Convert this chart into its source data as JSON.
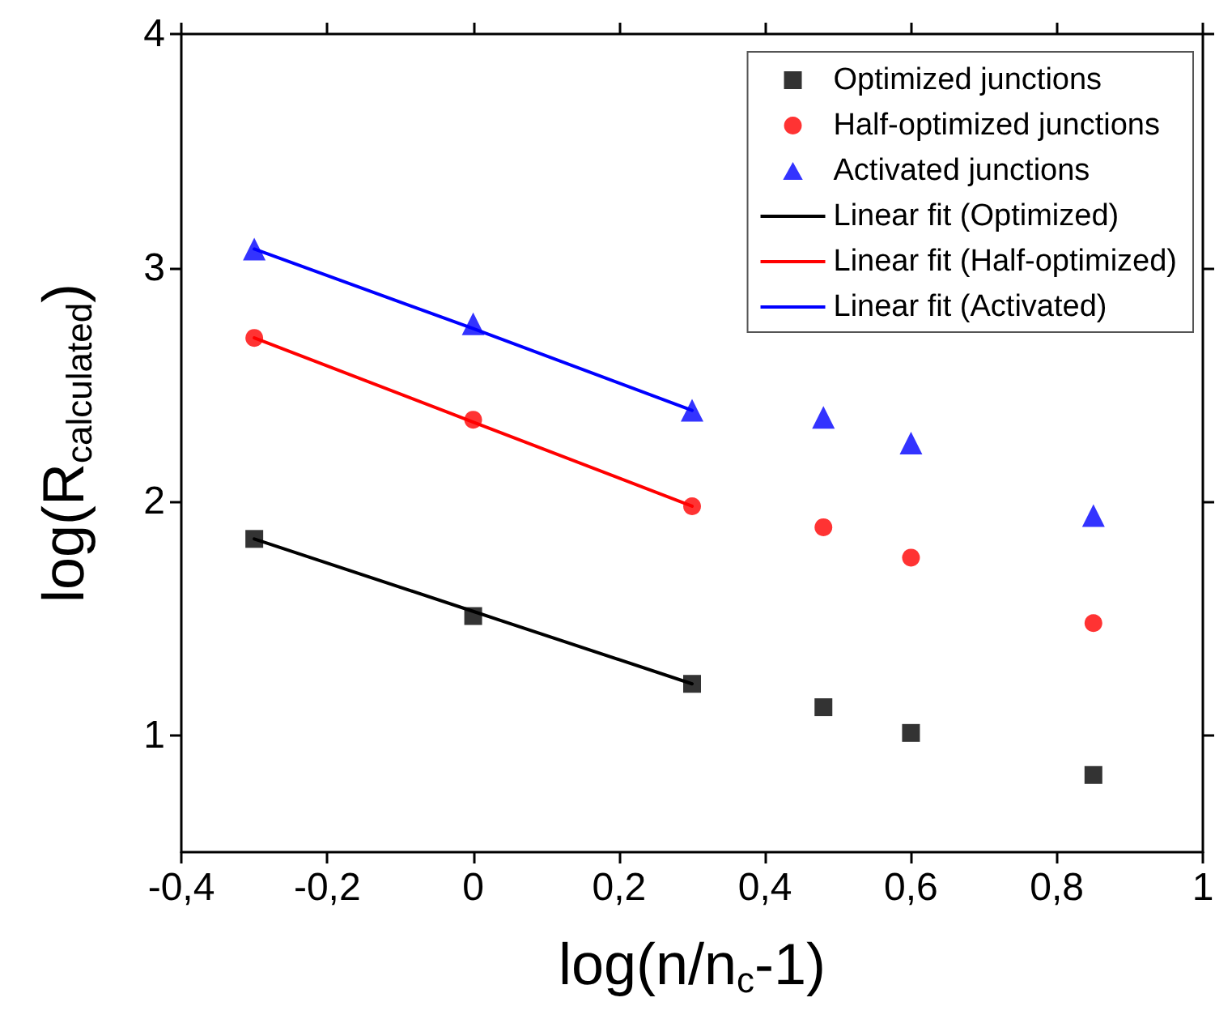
{
  "chart_data": {
    "type": "scatter",
    "xlabel": "log(n/n$_{c}$-1)",
    "ylabel": "log(R$_{calculated}$)",
    "xlim": [
      -0.4,
      1
    ],
    "xticks": [
      {
        "value": -0.4,
        "label": "-0,4"
      },
      {
        "value": -0.2,
        "label": "-0,2"
      },
      0,
      {
        "value": 0.2,
        "label": "0,2"
      },
      {
        "value": 0.4,
        "label": "0,4"
      },
      {
        "value": 0.6,
        "label": "0,6"
      },
      {
        "value": 0.8,
        "label": "0,8"
      },
      1
    ],
    "ylim": [
      0.5,
      4
    ],
    "yticks": [
      1,
      2,
      3,
      4
    ],
    "grid": false,
    "legend": "top right",
    "x": [
      -0.3,
      0,
      0.3,
      0.48,
      0.6,
      0.85
    ],
    "series": [
      {
        "name": "Optimized junctions",
        "marker": "square",
        "color": "#000000",
        "values": [
          1.84,
          1.51,
          1.22,
          1.12,
          1.01,
          0.83
        ]
      },
      {
        "name": "Half-optimized junctions",
        "marker": "circle",
        "color": "#ff0000",
        "values": [
          2.7,
          2.35,
          1.98,
          1.89,
          1.76,
          1.48
        ]
      },
      {
        "name": "Activated junctions",
        "marker": "triangle",
        "color": "#0000ff",
        "values": [
          3.08,
          2.76,
          2.39,
          2.36,
          2.25,
          1.94
        ]
      },
      {
        "name": "Linear fit (Optimized)",
        "type": "line",
        "marker": "none",
        "line_style": "solid",
        "color": "#000000",
        "values": [
          1.84,
          1.53,
          1.22,
          null,
          null,
          null
        ]
      },
      {
        "name": "Linear fit (Half-optimized)",
        "type": "line",
        "marker": "none",
        "line_style": "solid",
        "color": "#ff0000",
        "values": [
          2.7,
          2.34,
          1.98,
          null,
          null,
          null
        ]
      },
      {
        "name": "Linear fit (Activated)",
        "type": "line",
        "marker": "none",
        "line_style": "solid",
        "color": "#0000ff",
        "values": [
          3.08,
          2.74,
          2.39,
          null,
          null,
          null
        ]
      }
    ]
  }
}
